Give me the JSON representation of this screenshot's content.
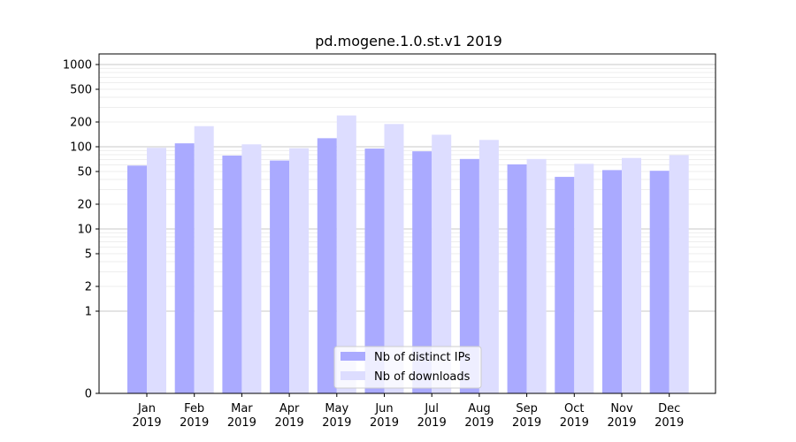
{
  "chart_data": {
    "type": "bar",
    "title": "pd.mogene.1.0.st.v1 2019",
    "xlabel": "",
    "ylabel": "",
    "yscale": "symlog",
    "ylim": [
      0,
      1300
    ],
    "y_ticks": [
      0,
      1,
      2,
      5,
      10,
      20,
      50,
      100,
      200,
      500,
      1000
    ],
    "categories": [
      "Jan\n2019",
      "Feb\n2019",
      "Mar\n2019",
      "Apr\n2019",
      "May\n2019",
      "Jun\n2019",
      "Jul\n2019",
      "Aug\n2019",
      "Sep\n2019",
      "Oct\n2019",
      "Nov\n2019",
      "Dec\n2019"
    ],
    "series": [
      {
        "name": "Nb of distinct IPs",
        "color": "#aaaaff",
        "values": [
          59,
          110,
          78,
          68,
          127,
          95,
          88,
          71,
          61,
          43,
          52,
          51
        ]
      },
      {
        "name": "Nb of downloads",
        "color": "#ddddff",
        "values": [
          97,
          178,
          107,
          96,
          240,
          189,
          140,
          121,
          71,
          62,
          73,
          79
        ]
      }
    ],
    "grid": true,
    "legend": "bottom-center"
  }
}
